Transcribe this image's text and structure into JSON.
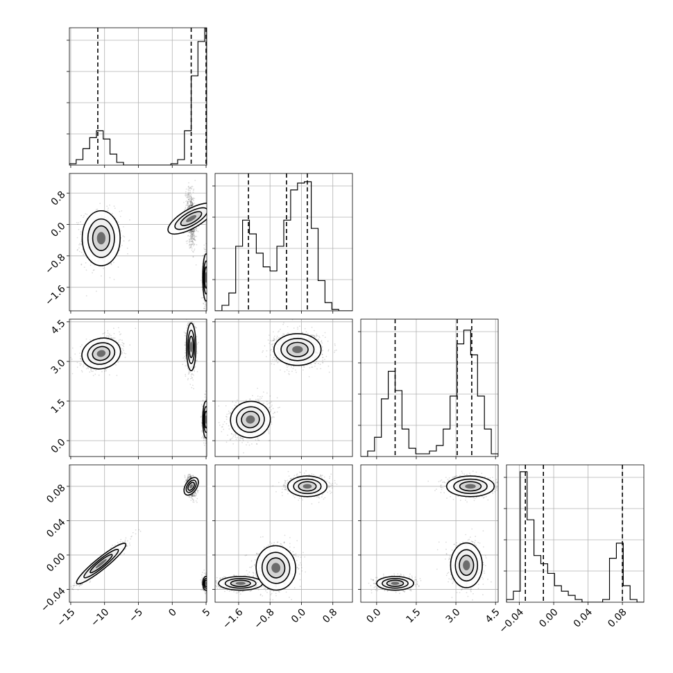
{
  "chart_data": {
    "type": "corner",
    "n_params": 4,
    "grid": true,
    "params": [
      {
        "ticks": [
          -15,
          -10,
          -5,
          0,
          5
        ],
        "tick_labels": [
          "−15",
          "−10",
          "−5",
          "0",
          "5"
        ],
        "range": [
          -15.2,
          5.1
        ],
        "quantiles": [
          -11.0,
          2.8,
          5.0
        ],
        "hist": {
          "edges": [
            -15.2,
            -14.2,
            -13.2,
            -12.2,
            -11.2,
            -10.2,
            -9.2,
            -8.2,
            -7.2,
            -6.2,
            -5.2,
            -4.2,
            -3.2,
            -2.2,
            -1.2,
            -0.2,
            0.8,
            1.8,
            2.8,
            3.8,
            4.8,
            5.1
          ],
          "counts": [
            0.01,
            0.04,
            0.12,
            0.2,
            0.25,
            0.19,
            0.08,
            0.02,
            0.0,
            0.0,
            0.0,
            0.0,
            0.0,
            0.0,
            0.0,
            0.01,
            0.04,
            0.25,
            0.65,
            0.9,
            1.0
          ]
        }
      },
      {
        "ticks": [
          -1.6,
          -0.8,
          0.0,
          0.8
        ],
        "tick_labels": [
          "−1.6",
          "−0.8",
          "0.0",
          "0.8"
        ],
        "range": [
          -2.2,
          1.3
        ],
        "quantiles": [
          -1.35,
          -0.38,
          0.15
        ],
        "hist": {
          "edges": [
            -2.2,
            -2.025,
            -1.85,
            -1.675,
            -1.5,
            -1.325,
            -1.15,
            -0.975,
            -0.8,
            -0.625,
            -0.45,
            -0.275,
            -0.1,
            0.075,
            0.25,
            0.425,
            0.6,
            0.775,
            0.95,
            1.125,
            1.3
          ],
          "counts": [
            0.0,
            0.04,
            0.13,
            0.47,
            0.66,
            0.56,
            0.42,
            0.32,
            0.29,
            0.47,
            0.66,
            0.88,
            0.93,
            0.94,
            0.6,
            0.22,
            0.06,
            0.01,
            0.0,
            0.0
          ]
        }
      },
      {
        "ticks": [
          0.0,
          1.5,
          3.0,
          4.5
        ],
        "tick_labels": [
          "0.0",
          "1.5",
          "3.0",
          "4.5"
        ],
        "range": [
          -0.6,
          4.6
        ],
        "quantiles": [
          0.7,
          3.05,
          3.6
        ],
        "hist": {
          "edges": [
            -0.6,
            -0.34,
            -0.08,
            0.18,
            0.44,
            0.7,
            0.96,
            1.22,
            1.48,
            1.74,
            2.0,
            2.26,
            2.52,
            2.78,
            3.04,
            3.3,
            3.56,
            3.82,
            4.08,
            4.34,
            4.6
          ],
          "counts": [
            0.0,
            0.04,
            0.14,
            0.42,
            0.62,
            0.48,
            0.2,
            0.06,
            0.02,
            0.02,
            0.04,
            0.08,
            0.2,
            0.44,
            0.82,
            0.92,
            0.74,
            0.44,
            0.2,
            0.02
          ]
        }
      },
      {
        "ticks": [
          -0.04,
          0.0,
          0.04,
          0.08
        ],
        "tick_labels": [
          "−0.04",
          "0.00",
          "0.04",
          "0.08"
        ],
        "range": [
          -0.055,
          0.105
        ],
        "quantiles": [
          -0.033,
          -0.012,
          0.08
        ],
        "hist": {
          "edges": [
            -0.055,
            -0.047,
            -0.039,
            -0.031,
            -0.023,
            -0.015,
            -0.007,
            0.001,
            0.009,
            0.017,
            0.025,
            0.033,
            0.041,
            0.049,
            0.057,
            0.065,
            0.073,
            0.081,
            0.089,
            0.097,
            0.105
          ],
          "counts": [
            0.02,
            0.08,
            0.95,
            0.6,
            0.34,
            0.28,
            0.21,
            0.12,
            0.08,
            0.05,
            0.02,
            0.0,
            0.0,
            0.0,
            0.02,
            0.32,
            0.43,
            0.12,
            0.02,
            0.0
          ]
        }
      }
    ],
    "pairs": [
      {
        "row": 1,
        "col": 0,
        "modes": [
          {
            "mx": -10.5,
            "my": -0.35,
            "sx": 1.4,
            "sy": 0.35,
            "rho": 0.0,
            "w": 0.35
          },
          {
            "mx": 2.8,
            "my": 0.15,
            "sx": 0.35,
            "sy": 0.35,
            "rho": -0.3,
            "w": 0.35
          },
          {
            "mx": 5.0,
            "my": -1.35,
            "sx": 0.25,
            "sy": 0.3,
            "rho": 0.0,
            "w": 0.3
          }
        ]
      },
      {
        "row": 2,
        "col": 0,
        "modes": [
          {
            "mx": -10.5,
            "my": 3.3,
            "sx": 1.4,
            "sy": 0.3,
            "rho": 0.3,
            "w": 0.35
          },
          {
            "mx": 2.8,
            "my": 3.55,
            "sx": 0.35,
            "sy": 0.45,
            "rho": 0.0,
            "w": 0.35
          },
          {
            "mx": 5.0,
            "my": 0.8,
            "sx": 0.25,
            "sy": 0.35,
            "rho": 0.0,
            "w": 0.3
          }
        ]
      },
      {
        "row": 2,
        "col": 1,
        "modes": [
          {
            "mx": -1.3,
            "my": 0.8,
            "sx": 0.25,
            "sy": 0.35,
            "rho": 0.2,
            "w": 0.4
          },
          {
            "mx": -0.1,
            "my": 3.45,
            "sx": 0.3,
            "sy": 0.3,
            "rho": 0.0,
            "w": 0.6
          }
        ]
      },
      {
        "row": 2,
        "col": 2,
        "modes": []
      },
      {
        "row": 3,
        "col": 0,
        "modes": [
          {
            "mx": -10.5,
            "my": -0.01,
            "sx": 1.8,
            "sy": 0.012,
            "rho": 0.96,
            "w": 0.35
          },
          {
            "mx": 2.8,
            "my": 0.08,
            "sx": 0.35,
            "sy": 0.006,
            "rho": -0.3,
            "w": 0.35
          },
          {
            "mx": 5.0,
            "my": -0.033,
            "sx": 0.25,
            "sy": 0.004,
            "rho": 0.0,
            "w": 0.3
          }
        ]
      },
      {
        "row": 3,
        "col": 1,
        "modes": [
          {
            "mx": -1.55,
            "my": -0.033,
            "sx": 0.28,
            "sy": 0.004,
            "rho": 0.0,
            "w": 0.3
          },
          {
            "mx": -0.65,
            "my": -0.015,
            "sx": 0.25,
            "sy": 0.013,
            "rho": 0.1,
            "w": 0.35
          },
          {
            "mx": 0.15,
            "my": 0.08,
            "sx": 0.25,
            "sy": 0.006,
            "rho": 0.0,
            "w": 0.35
          }
        ]
      },
      {
        "row": 3,
        "col": 2,
        "modes": [
          {
            "mx": 0.7,
            "my": -0.033,
            "sx": 0.35,
            "sy": 0.004,
            "rho": 0.0,
            "w": 0.3
          },
          {
            "mx": 3.4,
            "my": -0.012,
            "sx": 0.3,
            "sy": 0.013,
            "rho": 0.0,
            "w": 0.35
          },
          {
            "mx": 3.55,
            "my": 0.08,
            "sx": 0.45,
            "sy": 0.006,
            "rho": 0.0,
            "w": 0.35
          }
        ]
      }
    ]
  }
}
